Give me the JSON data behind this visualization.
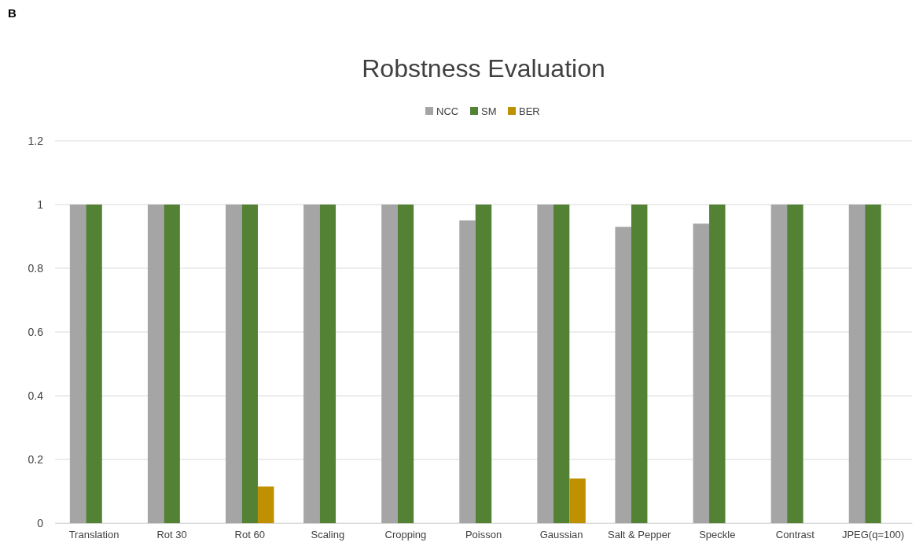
{
  "chart_data": {
    "type": "bar",
    "title": "Robstness Evaluation",
    "annotations": [
      "B"
    ],
    "categories": [
      "Translation",
      "Rot 30",
      "Rot 60",
      "Scaling",
      "Cropping",
      "Poisson",
      "Gaussian",
      "Salt & Pepper",
      "Speckle",
      "Contrast",
      "JPEG(q=100)"
    ],
    "series": [
      {
        "name": "NCC",
        "color": "#a5a5a5",
        "values": [
          1,
          1,
          1,
          1,
          1,
          0.95,
          1,
          0.93,
          0.94,
          1,
          1
        ]
      },
      {
        "name": "SM",
        "color": "#548235",
        "values": [
          1,
          1,
          1,
          1,
          1,
          1,
          1,
          1,
          1,
          1,
          1
        ]
      },
      {
        "name": "BER",
        "color": "#bf9000",
        "values": [
          null,
          null,
          0.115,
          null,
          null,
          null,
          0.14,
          null,
          null,
          null,
          null
        ]
      }
    ],
    "ylim": [
      0,
      1.2
    ],
    "yticks": [
      0,
      0.2,
      0.4,
      0.6,
      0.8,
      1,
      1.2
    ],
    "grid": "y",
    "legend": "top"
  }
}
